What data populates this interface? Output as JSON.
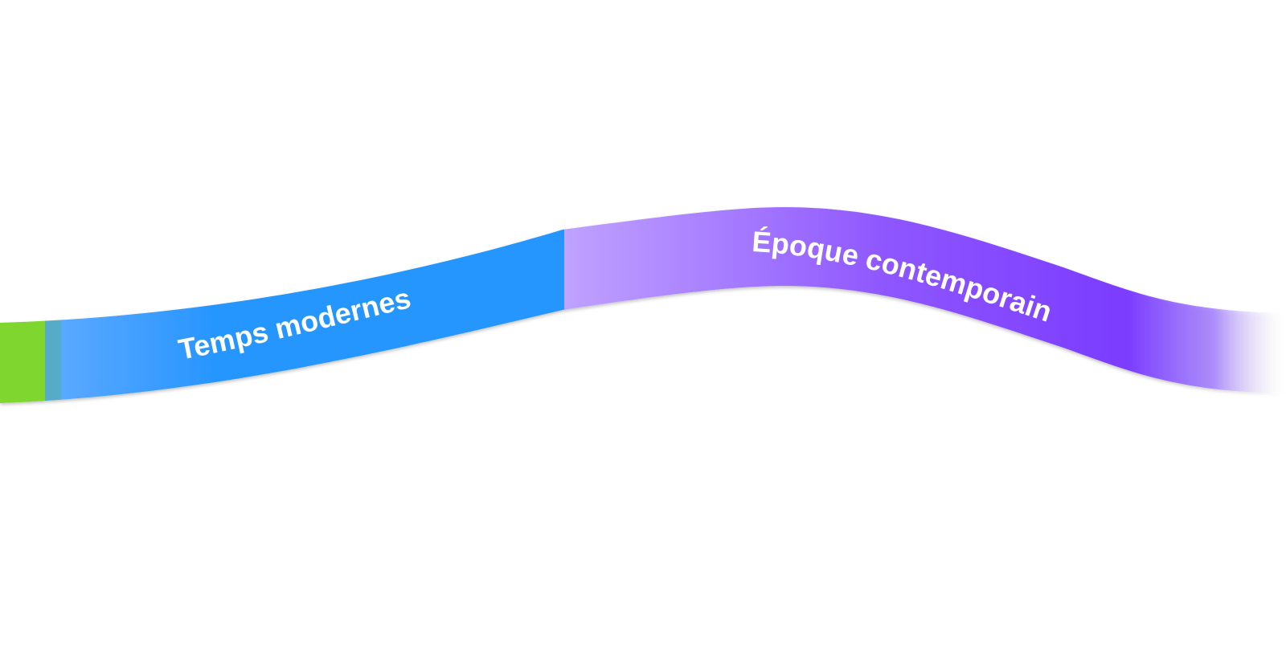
{
  "timeline": {
    "eras": [
      {
        "label": "",
        "color": "#7ED62E"
      },
      {
        "label": "Temps modernes",
        "color": "#2896FF"
      },
      {
        "label": "Époque contemporaine",
        "color": "#7B3CFF"
      }
    ]
  }
}
